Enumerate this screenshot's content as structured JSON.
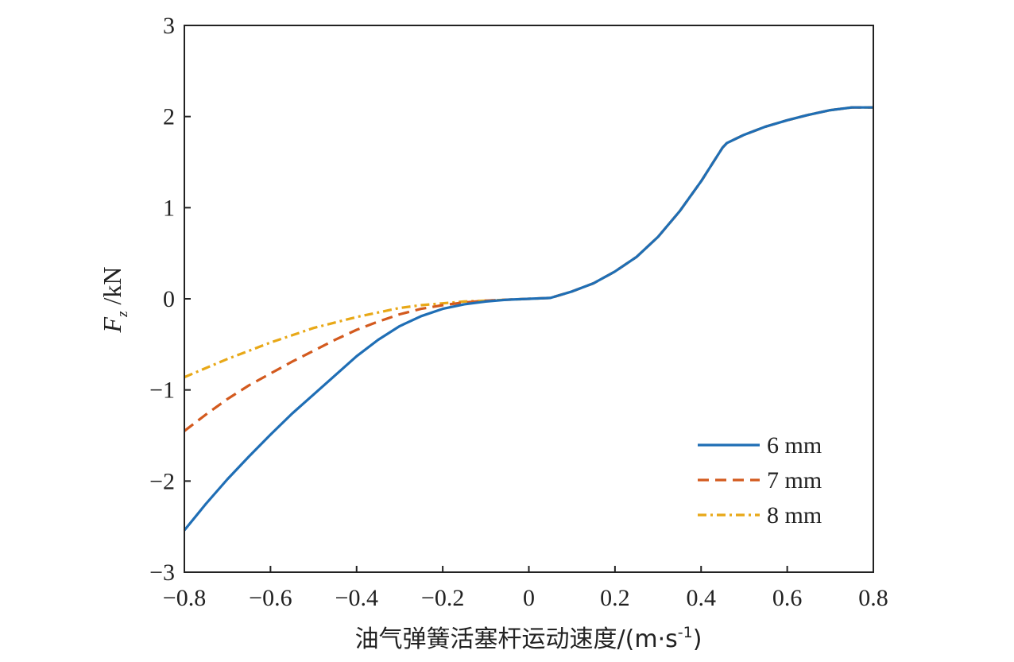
{
  "chart_data": {
    "type": "line",
    "xlabel": "油气弹簧活塞杆运动速度/(m·s",
    "xlabel_sup": "-1",
    "xlabel_end": ")",
    "ylabel_var": "F",
    "ylabel_sub": "z",
    "ylabel_unit": " /kN",
    "xlim": [
      -0.8,
      0.8
    ],
    "ylim": [
      -3,
      3
    ],
    "x_ticks": [
      -0.8,
      -0.6,
      -0.4,
      -0.2,
      0,
      0.2,
      0.4,
      0.6,
      0.8
    ],
    "x_tick_labels": [
      "−0.8",
      "−0.6",
      "−0.4",
      "−0.2",
      "0",
      "0.2",
      "0.4",
      "0.6",
      "0.8"
    ],
    "y_ticks": [
      -3,
      -2,
      -1,
      0,
      1,
      2,
      3
    ],
    "y_tick_labels": [
      "−3",
      "−2",
      "−1",
      "0",
      "1",
      "2",
      "3"
    ],
    "legend_position": "bottom-right",
    "series": [
      {
        "name": "6 mm",
        "color": "#1f6eb5",
        "style": "solid",
        "points": [
          [
            -0.8,
            -2.54
          ],
          [
            -0.75,
            -2.25
          ],
          [
            -0.7,
            -1.98
          ],
          [
            -0.65,
            -1.73
          ],
          [
            -0.6,
            -1.49
          ],
          [
            -0.55,
            -1.26
          ],
          [
            -0.5,
            -1.05
          ],
          [
            -0.45,
            -0.84
          ],
          [
            -0.4,
            -0.63
          ],
          [
            -0.35,
            -0.45
          ],
          [
            -0.3,
            -0.3
          ],
          [
            -0.25,
            -0.19
          ],
          [
            -0.2,
            -0.11
          ],
          [
            -0.15,
            -0.06
          ],
          [
            -0.1,
            -0.03
          ],
          [
            -0.05,
            -0.01
          ],
          [
            0,
            0
          ],
          [
            0.05,
            0.01
          ],
          [
            0.1,
            0.08
          ],
          [
            0.15,
            0.17
          ],
          [
            0.2,
            0.3
          ],
          [
            0.25,
            0.46
          ],
          [
            0.3,
            0.68
          ],
          [
            0.35,
            0.96
          ],
          [
            0.4,
            1.29
          ],
          [
            0.45,
            1.66
          ],
          [
            0.46,
            1.71
          ],
          [
            0.5,
            1.8
          ],
          [
            0.55,
            1.89
          ],
          [
            0.6,
            1.96
          ],
          [
            0.65,
            2.02
          ],
          [
            0.7,
            2.07
          ],
          [
            0.75,
            2.1
          ],
          [
            0.8,
            2.1
          ]
        ]
      },
      {
        "name": "7 mm",
        "color": "#d35a1e",
        "style": "dashed",
        "points": [
          [
            -0.8,
            -1.45
          ],
          [
            -0.75,
            -1.27
          ],
          [
            -0.7,
            -1.1
          ],
          [
            -0.65,
            -0.95
          ],
          [
            -0.6,
            -0.82
          ],
          [
            -0.55,
            -0.69
          ],
          [
            -0.5,
            -0.57
          ],
          [
            -0.45,
            -0.45
          ],
          [
            -0.4,
            -0.34
          ],
          [
            -0.35,
            -0.25
          ],
          [
            -0.3,
            -0.17
          ],
          [
            -0.25,
            -0.11
          ],
          [
            -0.2,
            -0.07
          ],
          [
            -0.15,
            -0.04
          ],
          [
            -0.1,
            -0.02
          ],
          [
            -0.05,
            -0.01
          ],
          [
            0,
            0
          ],
          [
            0.05,
            0.01
          ],
          [
            0.1,
            0.08
          ],
          [
            0.15,
            0.17
          ],
          [
            0.2,
            0.3
          ],
          [
            0.25,
            0.46
          ],
          [
            0.3,
            0.68
          ],
          [
            0.35,
            0.96
          ],
          [
            0.4,
            1.29
          ],
          [
            0.45,
            1.66
          ],
          [
            0.46,
            1.71
          ],
          [
            0.5,
            1.8
          ],
          [
            0.55,
            1.89
          ],
          [
            0.6,
            1.96
          ],
          [
            0.65,
            2.02
          ],
          [
            0.7,
            2.07
          ],
          [
            0.75,
            2.1
          ],
          [
            0.8,
            2.1
          ]
        ]
      },
      {
        "name": "8 mm",
        "color": "#e8a817",
        "style": "dashdot",
        "points": [
          [
            -0.8,
            -0.86
          ],
          [
            -0.75,
            -0.76
          ],
          [
            -0.7,
            -0.66
          ],
          [
            -0.65,
            -0.57
          ],
          [
            -0.6,
            -0.48
          ],
          [
            -0.55,
            -0.4
          ],
          [
            -0.5,
            -0.32
          ],
          [
            -0.45,
            -0.26
          ],
          [
            -0.4,
            -0.2
          ],
          [
            -0.35,
            -0.15
          ],
          [
            -0.3,
            -0.1
          ],
          [
            -0.25,
            -0.07
          ],
          [
            -0.2,
            -0.05
          ],
          [
            -0.15,
            -0.03
          ],
          [
            -0.1,
            -0.02
          ],
          [
            -0.05,
            -0.01
          ],
          [
            0,
            0
          ],
          [
            0.05,
            0.01
          ],
          [
            0.1,
            0.08
          ],
          [
            0.15,
            0.17
          ],
          [
            0.2,
            0.3
          ],
          [
            0.25,
            0.46
          ],
          [
            0.3,
            0.68
          ],
          [
            0.35,
            0.96
          ],
          [
            0.4,
            1.29
          ],
          [
            0.45,
            1.66
          ],
          [
            0.46,
            1.71
          ],
          [
            0.5,
            1.8
          ],
          [
            0.55,
            1.89
          ],
          [
            0.6,
            1.96
          ],
          [
            0.65,
            2.02
          ],
          [
            0.7,
            2.07
          ],
          [
            0.75,
            2.1
          ],
          [
            0.8,
            2.1
          ]
        ]
      }
    ]
  }
}
